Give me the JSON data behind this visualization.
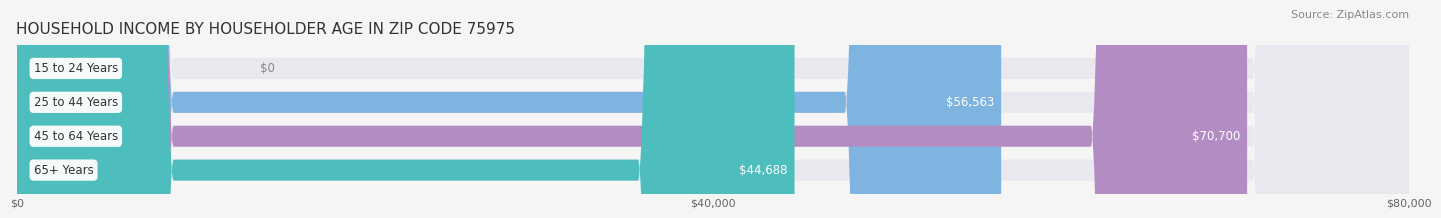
{
  "title": "HOUSEHOLD INCOME BY HOUSEHOLDER AGE IN ZIP CODE 75975",
  "source": "Source: ZipAtlas.com",
  "categories": [
    "15 to 24 Years",
    "25 to 44 Years",
    "45 to 64 Years",
    "65+ Years"
  ],
  "values": [
    0,
    56563,
    70700,
    44688
  ],
  "bar_colors": [
    "#f4a0a8",
    "#7fb3e0",
    "#b48cc4",
    "#4dbdbe"
  ],
  "value_labels": [
    "$0",
    "$56,563",
    "$70,700",
    "$44,688"
  ],
  "value_label_dark": [
    true,
    false,
    false,
    false
  ],
  "xlim": [
    0,
    80000
  ],
  "xticks": [
    0,
    40000,
    80000
  ],
  "xticklabels": [
    "$0",
    "$40,000",
    "$80,000"
  ],
  "bar_height": 0.62,
  "bg_color": "#f5f5f5",
  "bar_bg_color": "#e8e8ee",
  "title_fontsize": 11,
  "source_fontsize": 8,
  "tick_fontsize": 8,
  "bar_label_fontsize": 8.5,
  "value_label_fontsize": 8.5
}
